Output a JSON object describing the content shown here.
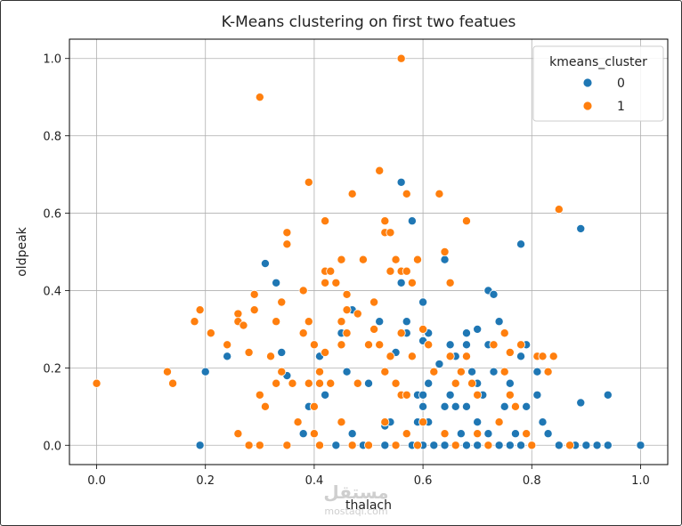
{
  "chart_data": {
    "type": "scatter",
    "title": "K-Means clustering on first two featues",
    "xlabel": "thalach",
    "ylabel": "oldpeak",
    "xlim": [
      -0.05,
      1.05
    ],
    "ylim": [
      -0.05,
      1.05
    ],
    "xticks": [
      0.0,
      0.2,
      0.4,
      0.6,
      0.8,
      1.0
    ],
    "yticks": [
      0.0,
      0.2,
      0.4,
      0.6,
      0.8,
      1.0
    ],
    "xtick_labels": [
      "0.0",
      "0.2",
      "0.4",
      "0.6",
      "0.8",
      "1.0"
    ],
    "ytick_labels": [
      "0.0",
      "0.2",
      "0.4",
      "0.6",
      "0.8",
      "1.0"
    ],
    "grid": true,
    "legend": {
      "title": "kmeans_cluster",
      "placement": "top-right",
      "entries": [
        "0",
        "1"
      ]
    },
    "colors": {
      "0": "#1f77b4",
      "1": "#ff7f0e"
    },
    "series": [
      {
        "name": "0",
        "points": [
          [
            0.19,
            0.0
          ],
          [
            0.2,
            0.19
          ],
          [
            0.24,
            0.23
          ],
          [
            0.31,
            0.47
          ],
          [
            0.33,
            0.42
          ],
          [
            0.34,
            0.24
          ],
          [
            0.35,
            0.18
          ],
          [
            0.38,
            0.03
          ],
          [
            0.39,
            0.1
          ],
          [
            0.41,
            0.23
          ],
          [
            0.42,
            0.13
          ],
          [
            0.45,
            0.29
          ],
          [
            0.46,
            0.19
          ],
          [
            0.47,
            0.03
          ],
          [
            0.47,
            0.35
          ],
          [
            0.5,
            0.16
          ],
          [
            0.52,
            0.32
          ],
          [
            0.53,
            0.05
          ],
          [
            0.54,
            0.06
          ],
          [
            0.55,
            0.24
          ],
          [
            0.56,
            0.42
          ],
          [
            0.56,
            0.68
          ],
          [
            0.57,
            0.32
          ],
          [
            0.57,
            0.29
          ],
          [
            0.58,
            0.58
          ],
          [
            0.59,
            0.13
          ],
          [
            0.59,
            0.06
          ],
          [
            0.6,
            0.37
          ],
          [
            0.6,
            0.27
          ],
          [
            0.6,
            0.13
          ],
          [
            0.6,
            0.1
          ],
          [
            0.61,
            0.29
          ],
          [
            0.61,
            0.16
          ],
          [
            0.61,
            0.06
          ],
          [
            0.62,
            0.19
          ],
          [
            0.63,
            0.21
          ],
          [
            0.64,
            0.48
          ],
          [
            0.64,
            0.1
          ],
          [
            0.65,
            0.26
          ],
          [
            0.65,
            0.13
          ],
          [
            0.66,
            0.23
          ],
          [
            0.66,
            0.1
          ],
          [
            0.67,
            0.03
          ],
          [
            0.68,
            0.29
          ],
          [
            0.68,
            0.26
          ],
          [
            0.68,
            0.1
          ],
          [
            0.69,
            0.19
          ],
          [
            0.7,
            0.3
          ],
          [
            0.7,
            0.16
          ],
          [
            0.7,
            0.06
          ],
          [
            0.71,
            0.13
          ],
          [
            0.72,
            0.4
          ],
          [
            0.72,
            0.26
          ],
          [
            0.72,
            0.03
          ],
          [
            0.73,
            0.39
          ],
          [
            0.73,
            0.19
          ],
          [
            0.74,
            0.32
          ],
          [
            0.75,
            0.1
          ],
          [
            0.76,
            0.16
          ],
          [
            0.77,
            0.03
          ],
          [
            0.78,
            0.52
          ],
          [
            0.78,
            0.23
          ],
          [
            0.79,
            0.26
          ],
          [
            0.79,
            0.1
          ],
          [
            0.81,
            0.19
          ],
          [
            0.81,
            0.13
          ],
          [
            0.82,
            0.06
          ],
          [
            0.82,
            0.23
          ],
          [
            0.83,
            0.03
          ],
          [
            0.85,
            0.0
          ],
          [
            0.88,
            0.0
          ],
          [
            0.89,
            0.56
          ],
          [
            0.89,
            0.11
          ],
          [
            0.9,
            0.0
          ],
          [
            0.92,
            0.0
          ],
          [
            0.94,
            0.13
          ],
          [
            0.94,
            0.0
          ],
          [
            1.0,
            0.0
          ],
          [
            0.44,
            0.0
          ],
          [
            0.49,
            0.0
          ],
          [
            0.53,
            0.0
          ],
          [
            0.58,
            0.0
          ],
          [
            0.6,
            0.0
          ],
          [
            0.62,
            0.0
          ],
          [
            0.64,
            0.0
          ],
          [
            0.66,
            0.0
          ],
          [
            0.68,
            0.0
          ],
          [
            0.7,
            0.0
          ],
          [
            0.72,
            0.0
          ],
          [
            0.74,
            0.0
          ],
          [
            0.76,
            0.0
          ],
          [
            0.78,
            0.0
          ],
          [
            0.8,
            0.0
          ]
        ]
      },
      {
        "name": "1",
        "points": [
          [
            0.0,
            0.16
          ],
          [
            0.13,
            0.19
          ],
          [
            0.14,
            0.16
          ],
          [
            0.18,
            0.32
          ],
          [
            0.19,
            0.35
          ],
          [
            0.21,
            0.29
          ],
          [
            0.24,
            0.26
          ],
          [
            0.26,
            0.34
          ],
          [
            0.26,
            0.32
          ],
          [
            0.26,
            0.03
          ],
          [
            0.27,
            0.31
          ],
          [
            0.28,
            0.24
          ],
          [
            0.28,
            0.0
          ],
          [
            0.29,
            0.39
          ],
          [
            0.29,
            0.35
          ],
          [
            0.3,
            0.9
          ],
          [
            0.3,
            0.13
          ],
          [
            0.3,
            0.0
          ],
          [
            0.31,
            0.1
          ],
          [
            0.32,
            0.23
          ],
          [
            0.33,
            0.32
          ],
          [
            0.33,
            0.16
          ],
          [
            0.34,
            0.19
          ],
          [
            0.34,
            0.37
          ],
          [
            0.35,
            0.52
          ],
          [
            0.35,
            0.55
          ],
          [
            0.36,
            0.16
          ],
          [
            0.37,
            0.06
          ],
          [
            0.38,
            0.4
          ],
          [
            0.38,
            0.29
          ],
          [
            0.39,
            0.68
          ],
          [
            0.39,
            0.16
          ],
          [
            0.39,
            0.32
          ],
          [
            0.4,
            0.26
          ],
          [
            0.4,
            0.1
          ],
          [
            0.4,
            0.03
          ],
          [
            0.41,
            0.19
          ],
          [
            0.41,
            0.16
          ],
          [
            0.41,
            0.0
          ],
          [
            0.42,
            0.58
          ],
          [
            0.42,
            0.45
          ],
          [
            0.42,
            0.42
          ],
          [
            0.42,
            0.24
          ],
          [
            0.43,
            0.45
          ],
          [
            0.43,
            0.16
          ],
          [
            0.44,
            0.42
          ],
          [
            0.45,
            0.48
          ],
          [
            0.45,
            0.32
          ],
          [
            0.45,
            0.26
          ],
          [
            0.45,
            0.06
          ],
          [
            0.46,
            0.35
          ],
          [
            0.46,
            0.39
          ],
          [
            0.46,
            0.29
          ],
          [
            0.47,
            0.65
          ],
          [
            0.48,
            0.34
          ],
          [
            0.49,
            0.48
          ],
          [
            0.5,
            0.0
          ],
          [
            0.51,
            0.37
          ],
          [
            0.51,
            0.3
          ],
          [
            0.52,
            0.26
          ],
          [
            0.52,
            0.71
          ],
          [
            0.53,
            0.58
          ],
          [
            0.53,
            0.55
          ],
          [
            0.53,
            0.19
          ],
          [
            0.53,
            0.06
          ],
          [
            0.54,
            0.45
          ],
          [
            0.54,
            0.55
          ],
          [
            0.54,
            0.23
          ],
          [
            0.55,
            0.48
          ],
          [
            0.55,
            0.16
          ],
          [
            0.55,
            0.0
          ],
          [
            0.56,
            0.45
          ],
          [
            0.56,
            0.13
          ],
          [
            0.56,
            0.29
          ],
          [
            0.56,
            1.0
          ],
          [
            0.57,
            0.65
          ],
          [
            0.57,
            0.45
          ],
          [
            0.57,
            0.13
          ],
          [
            0.57,
            0.03
          ],
          [
            0.58,
            0.23
          ],
          [
            0.58,
            0.42
          ],
          [
            0.59,
            0.48
          ],
          [
            0.59,
            0.0
          ],
          [
            0.6,
            0.3
          ],
          [
            0.6,
            0.06
          ],
          [
            0.61,
            0.26
          ],
          [
            0.62,
            0.19
          ],
          [
            0.63,
            0.65
          ],
          [
            0.64,
            0.5
          ],
          [
            0.64,
            0.03
          ],
          [
            0.65,
            0.42
          ],
          [
            0.65,
            0.23
          ],
          [
            0.66,
            0.16
          ],
          [
            0.67,
            0.19
          ],
          [
            0.68,
            0.58
          ],
          [
            0.68,
            0.23
          ],
          [
            0.69,
            0.16
          ],
          [
            0.7,
            0.13
          ],
          [
            0.72,
            0.0
          ],
          [
            0.73,
            0.26
          ],
          [
            0.74,
            0.06
          ],
          [
            0.75,
            0.29
          ],
          [
            0.75,
            0.19
          ],
          [
            0.76,
            0.13
          ],
          [
            0.76,
            0.24
          ],
          [
            0.77,
            0.1
          ],
          [
            0.78,
            0.26
          ],
          [
            0.79,
            0.03
          ],
          [
            0.8,
            0.0
          ],
          [
            0.81,
            0.23
          ],
          [
            0.82,
            0.23
          ],
          [
            0.83,
            0.19
          ],
          [
            0.84,
            0.23
          ],
          [
            0.85,
            0.61
          ],
          [
            0.87,
            0.0
          ],
          [
            0.35,
            0.0
          ],
          [
            0.47,
            0.0
          ],
          [
            0.66,
            0.0
          ],
          [
            0.7,
            0.03
          ],
          [
            0.48,
            0.16
          ],
          [
            0.5,
            0.26
          ]
        ]
      }
    ]
  },
  "watermark": {
    "main": "مستقل",
    "sub": "mostaql.com"
  }
}
